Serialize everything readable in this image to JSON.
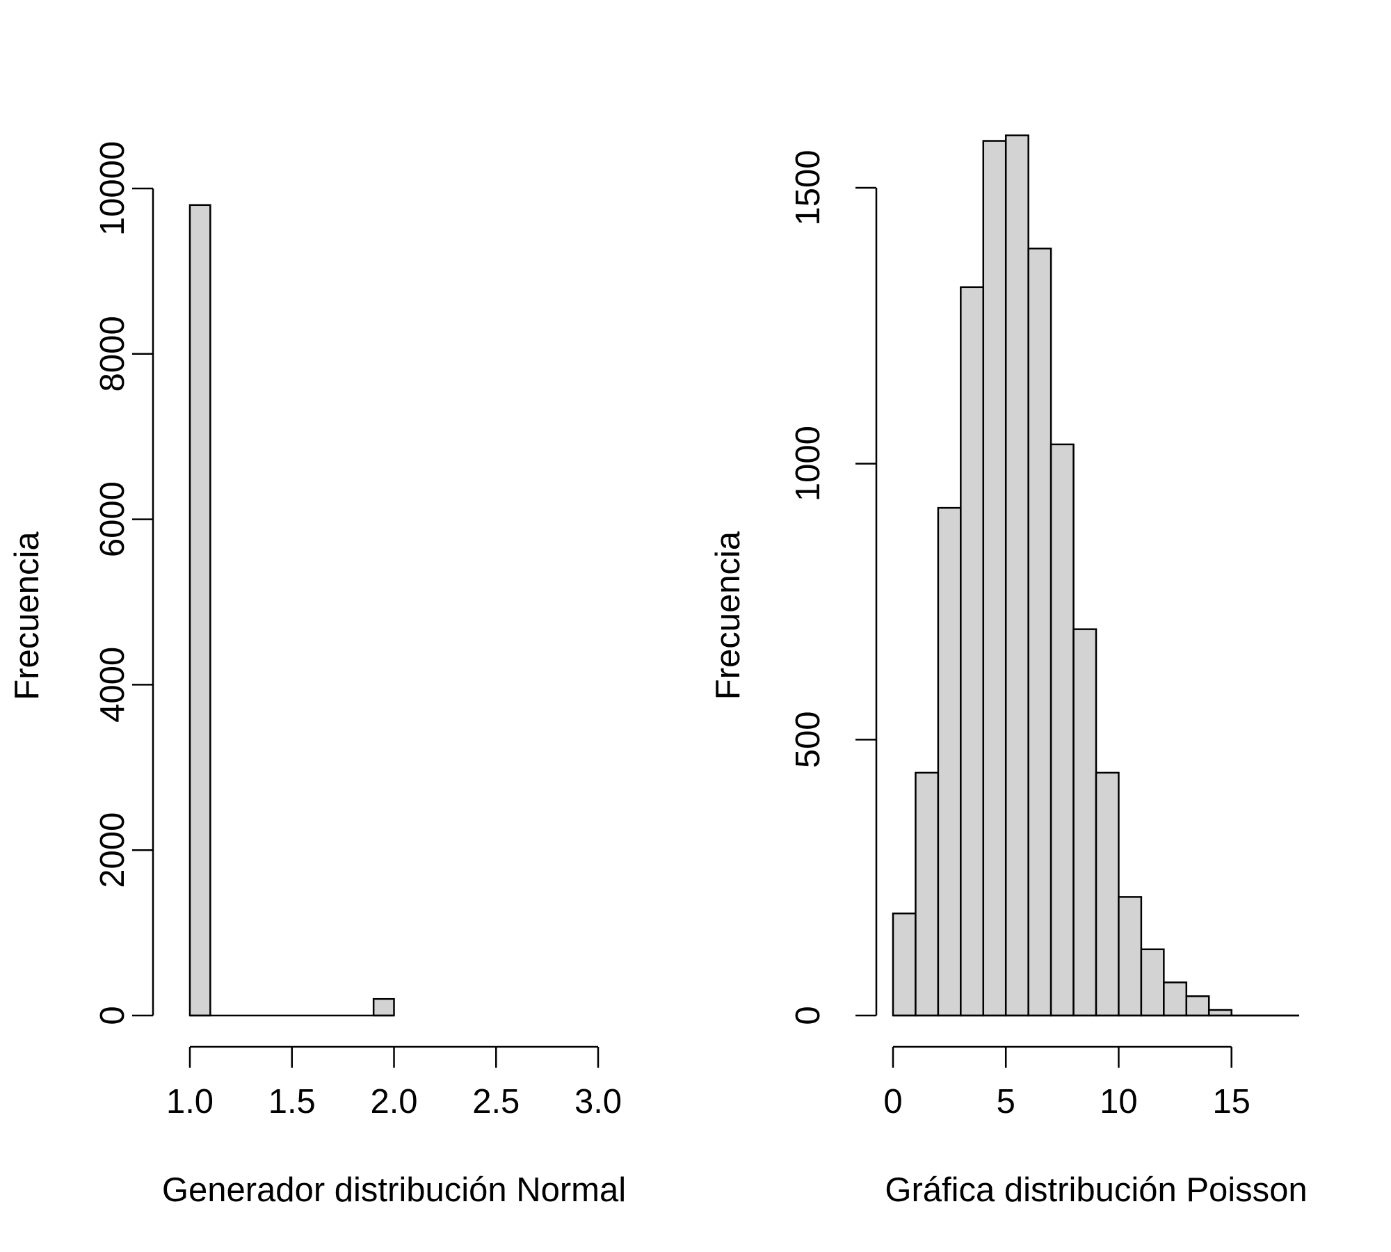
{
  "chart_data": [
    {
      "type": "bar",
      "subtype": "histogram",
      "title": "",
      "xlabel": "Generador distribución Normal",
      "ylabel": "Frecuencia",
      "bins": [
        [
          1.0,
          1.1
        ],
        [
          1.9,
          2.0
        ]
      ],
      "values": [
        9800,
        200
      ],
      "xlim": [
        1.0,
        3.0
      ],
      "ylim": [
        0,
        10000
      ],
      "xticks": [
        1.0,
        1.5,
        2.0,
        2.5,
        3.0
      ],
      "xtick_labels": [
        "1.0",
        "1.5",
        "2.0",
        "2.5",
        "3.0"
      ],
      "yticks": [
        0,
        2000,
        4000,
        6000,
        8000,
        10000
      ],
      "ytick_labels": [
        "0",
        "2000",
        "4000",
        "6000",
        "8000",
        "10000"
      ],
      "bar_color": "#d3d3d3",
      "grid": false,
      "legend": "none"
    },
    {
      "type": "bar",
      "subtype": "histogram",
      "title": "",
      "xlabel": "Gráfica distribución Poisson",
      "ylabel": "Frecuencia",
      "bins": [
        [
          0,
          1
        ],
        [
          1,
          2
        ],
        [
          2,
          3
        ],
        [
          3,
          4
        ],
        [
          4,
          5
        ],
        [
          5,
          6
        ],
        [
          6,
          7
        ],
        [
          7,
          8
        ],
        [
          8,
          9
        ],
        [
          9,
          10
        ],
        [
          10,
          11
        ],
        [
          11,
          12
        ],
        [
          12,
          13
        ],
        [
          13,
          14
        ],
        [
          14,
          15
        ],
        [
          15,
          16
        ],
        [
          16,
          17
        ],
        [
          17,
          18
        ]
      ],
      "values": [
        185,
        440,
        920,
        1320,
        1585,
        1595,
        1390,
        1035,
        700,
        440,
        215,
        120,
        60,
        35,
        10,
        0,
        0,
        0
      ],
      "xlim": [
        0,
        18
      ],
      "ylim": [
        0,
        1600
      ],
      "xticks": [
        0,
        5,
        10,
        15
      ],
      "xtick_labels": [
        "0",
        "5",
        "10",
        "15"
      ],
      "yticks": [
        0,
        500,
        1000,
        1500
      ],
      "ytick_labels": [
        "0",
        "500",
        "1000",
        "1500"
      ],
      "bar_color": "#d3d3d3",
      "grid": false,
      "legend": "none"
    }
  ]
}
